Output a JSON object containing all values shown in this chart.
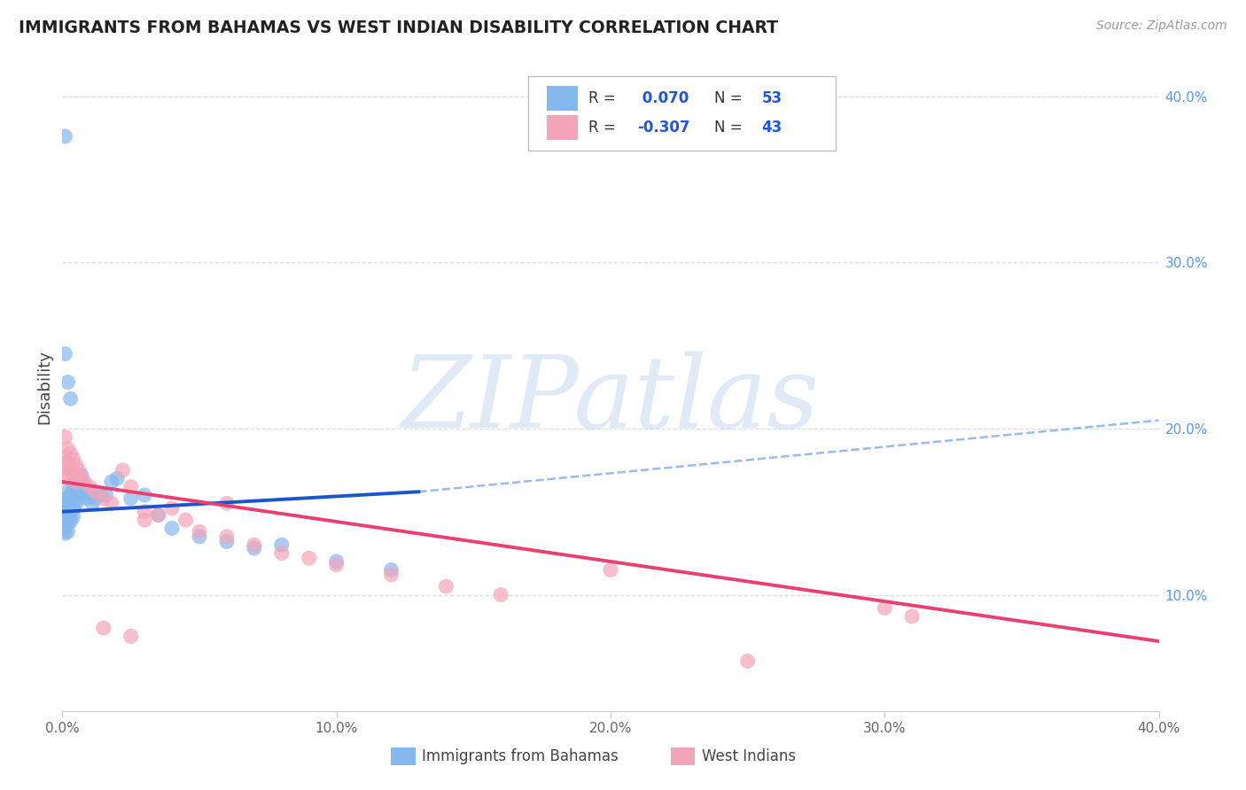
{
  "title": "IMMIGRANTS FROM BAHAMAS VS WEST INDIAN DISABILITY CORRELATION CHART",
  "source": "Source: ZipAtlas.com",
  "xlabel_left": "Immigrants from Bahamas",
  "xlabel_right": "West Indians",
  "ylabel": "Disability",
  "xlim": [
    0.0,
    0.4
  ],
  "ylim": [
    0.03,
    0.42
  ],
  "x_ticks": [
    0.0,
    0.1,
    0.2,
    0.3,
    0.4
  ],
  "y_ticks_right": [
    0.1,
    0.2,
    0.3,
    0.4
  ],
  "blue_R": " 0.070",
  "blue_N": "53",
  "pink_R": "-0.307",
  "pink_N": "43",
  "blue_color": "#85B8ED",
  "pink_color": "#F4A4B8",
  "blue_line_color": "#1A55CC",
  "pink_line_color": "#E84070",
  "dashed_line_color": "#99BBEE",
  "watermark": "ZIPatlas",
  "blue_scatter_x": [
    0.001,
    0.001,
    0.001,
    0.001,
    0.001,
    0.001,
    0.001,
    0.002,
    0.002,
    0.002,
    0.002,
    0.002,
    0.002,
    0.002,
    0.002,
    0.003,
    0.003,
    0.003,
    0.003,
    0.003,
    0.004,
    0.004,
    0.004,
    0.004,
    0.005,
    0.005,
    0.005,
    0.006,
    0.006,
    0.007,
    0.007,
    0.008,
    0.009,
    0.01,
    0.011,
    0.012,
    0.014,
    0.016,
    0.018,
    0.02,
    0.025,
    0.03,
    0.035,
    0.04,
    0.05,
    0.06,
    0.07,
    0.08,
    0.1,
    0.12,
    0.001,
    0.002,
    0.003
  ],
  "blue_scatter_y": [
    0.376,
    0.155,
    0.148,
    0.145,
    0.143,
    0.14,
    0.137,
    0.162,
    0.158,
    0.155,
    0.152,
    0.149,
    0.146,
    0.143,
    0.138,
    0.16,
    0.157,
    0.154,
    0.148,
    0.144,
    0.165,
    0.158,
    0.152,
    0.147,
    0.17,
    0.162,
    0.155,
    0.168,
    0.158,
    0.172,
    0.16,
    0.165,
    0.158,
    0.162,
    0.155,
    0.158,
    0.16,
    0.16,
    0.168,
    0.17,
    0.158,
    0.16,
    0.148,
    0.14,
    0.135,
    0.132,
    0.128,
    0.13,
    0.12,
    0.115,
    0.245,
    0.228,
    0.218
  ],
  "pink_scatter_x": [
    0.001,
    0.001,
    0.001,
    0.001,
    0.002,
    0.002,
    0.002,
    0.003,
    0.003,
    0.004,
    0.004,
    0.005,
    0.005,
    0.006,
    0.007,
    0.008,
    0.01,
    0.012,
    0.015,
    0.018,
    0.022,
    0.025,
    0.03,
    0.035,
    0.04,
    0.045,
    0.05,
    0.06,
    0.07,
    0.08,
    0.09,
    0.1,
    0.12,
    0.14,
    0.16,
    0.2,
    0.25,
    0.3,
    0.31,
    0.03,
    0.015,
    0.025,
    0.06
  ],
  "pink_scatter_y": [
    0.195,
    0.183,
    0.178,
    0.17,
    0.188,
    0.18,
    0.173,
    0.185,
    0.175,
    0.182,
    0.172,
    0.178,
    0.168,
    0.175,
    0.17,
    0.168,
    0.165,
    0.162,
    0.158,
    0.155,
    0.175,
    0.165,
    0.15,
    0.148,
    0.152,
    0.145,
    0.138,
    0.135,
    0.13,
    0.125,
    0.122,
    0.118,
    0.112,
    0.105,
    0.1,
    0.115,
    0.06,
    0.092,
    0.087,
    0.145,
    0.08,
    0.075,
    0.155
  ],
  "blue_line_x0": 0.0,
  "blue_line_y0": 0.15,
  "blue_line_x1": 0.13,
  "blue_line_y1": 0.162,
  "pink_line_x0": 0.0,
  "pink_line_y0": 0.168,
  "pink_line_x1": 0.4,
  "pink_line_y1": 0.072,
  "dash_line_x0": 0.13,
  "dash_line_y0": 0.162,
  "dash_line_x1": 0.4,
  "dash_line_y1": 0.205
}
